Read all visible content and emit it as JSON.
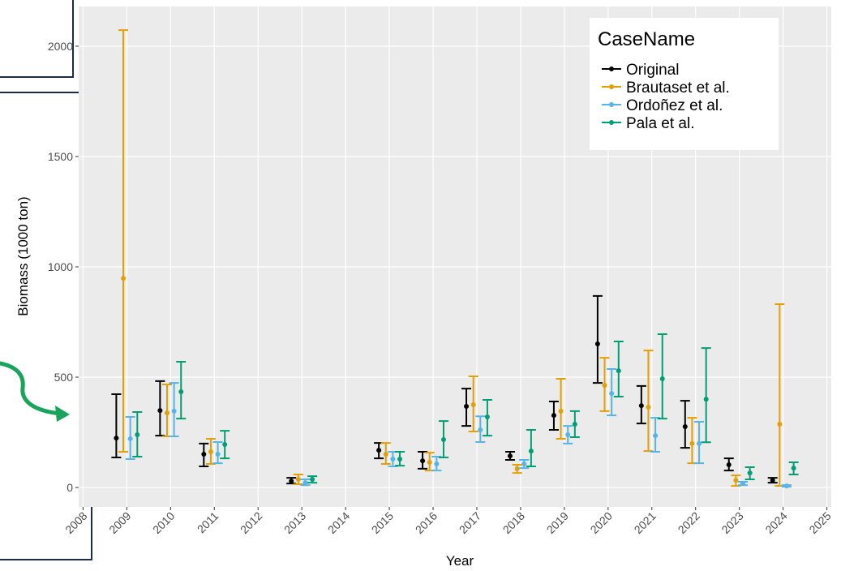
{
  "chart_data": {
    "type": "errorbar",
    "x_label": "Year",
    "y_label": "Biomass (1000 ton)",
    "legend_title": "CaseName",
    "legend_position": "top-right",
    "grid": true,
    "x": [
      2009,
      2010,
      2011,
      2013,
      2015,
      2016,
      2017,
      2018,
      2019,
      2020,
      2021,
      2022,
      2023,
      2024
    ],
    "xlim": [
      2007.9,
      2025.1
    ],
    "xticks": [
      2008,
      2009,
      2010,
      2011,
      2012,
      2013,
      2014,
      2015,
      2016,
      2017,
      2018,
      2019,
      2020,
      2021,
      2022,
      2023,
      2024,
      2025
    ],
    "ylim": [
      -88,
      2180
    ],
    "yticks": [
      0,
      500,
      1000,
      1500,
      2000
    ],
    "series": [
      {
        "name": "Original",
        "color": "#000000",
        "values": [
          224,
          349,
          151,
          29,
          169,
          121,
          368,
          143,
          327,
          651,
          371,
          276,
          103,
          33
        ],
        "lower": [
          136,
          235,
          96,
          18,
          132,
          85,
          279,
          125,
          261,
          474,
          290,
          180,
          77,
          22
        ],
        "upper": [
          423,
          482,
          199,
          44,
          202,
          162,
          448,
          162,
          390,
          868,
          460,
          393,
          132,
          44
        ]
      },
      {
        "name": "Brautaset et al.",
        "color": "#E69F00",
        "values": [
          948,
          338,
          162,
          37,
          151,
          114,
          375,
          85,
          346,
          463,
          364,
          199,
          33,
          287
        ],
        "lower": [
          162,
          232,
          107,
          15,
          107,
          77,
          254,
          66,
          221,
          346,
          165,
          110,
          7,
          7
        ],
        "upper": [
          2073,
          467,
          221,
          59,
          202,
          158,
          504,
          103,
          493,
          588,
          621,
          316,
          55,
          831
        ]
      },
      {
        "name": "Ordoñez et al.",
        "color": "#56B4E9",
        "values": [
          221,
          346,
          151,
          22,
          129,
          107,
          261,
          107,
          239,
          426,
          235,
          199,
          18,
          7
        ],
        "lower": [
          129,
          232,
          110,
          11,
          96,
          77,
          206,
          88,
          199,
          327,
          162,
          110,
          11,
          4
        ],
        "upper": [
          320,
          474,
          206,
          37,
          162,
          140,
          323,
          125,
          279,
          537,
          316,
          298,
          26,
          11
        ]
      },
      {
        "name": "Pala et al.",
        "color": "#009E73",
        "values": [
          239,
          434,
          195,
          37,
          129,
          217,
          320,
          165,
          287,
          529,
          493,
          400,
          66,
          88
        ],
        "lower": [
          140,
          312,
          132,
          22,
          99,
          136,
          235,
          96,
          228,
          412,
          312,
          205,
          37,
          59
        ],
        "upper": [
          342,
          570,
          257,
          51,
          162,
          301,
          397,
          261,
          346,
          662,
          695,
          632,
          92,
          114
        ]
      }
    ]
  }
}
